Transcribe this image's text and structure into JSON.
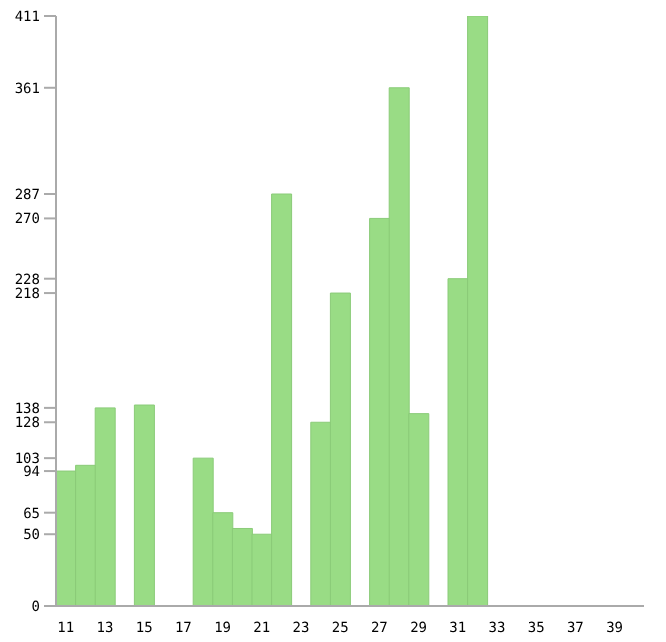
{
  "chart_data": {
    "type": "bar",
    "categories": [
      "11",
      null,
      "13",
      null,
      "15",
      null,
      "17",
      null,
      "19",
      null,
      "21",
      null,
      "23",
      null,
      "25",
      null,
      "27",
      null,
      "29",
      null,
      "31",
      null,
      "33",
      null,
      "35",
      null,
      "37",
      null,
      "39",
      null
    ],
    "values": [
      94,
      98,
      138,
      0,
      140,
      0,
      0,
      103,
      65,
      54,
      50,
      287,
      0,
      128,
      218,
      0,
      270,
      361,
      134,
      0,
      228,
      411,
      0,
      0,
      0,
      0,
      0,
      0,
      0,
      0
    ],
    "color": "#99dc85",
    "ylim": [
      0,
      411
    ],
    "yticks": [
      0,
      50,
      65,
      94,
      103,
      128,
      138,
      218,
      228,
      270,
      287,
      361,
      411
    ]
  }
}
